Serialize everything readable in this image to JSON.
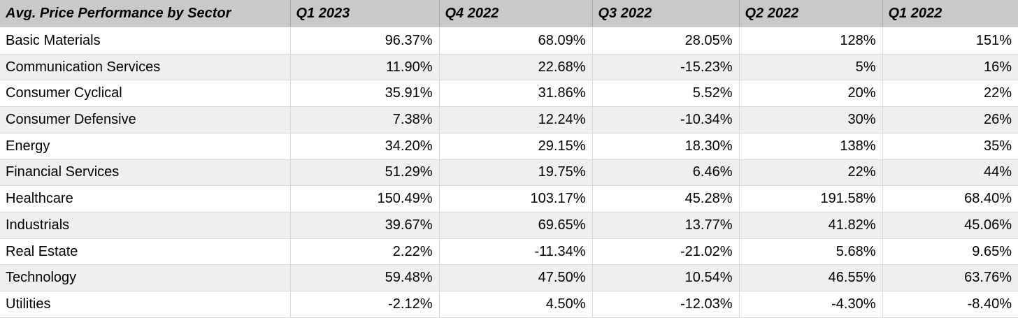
{
  "chart_data": {
    "type": "table",
    "title": "Avg. Price Performance by Sector",
    "columns": [
      "Avg. Price Performance by Sector",
      "Q1 2023",
      "Q4 2022",
      "Q3 2022",
      "Q2 2022",
      "Q1 2022"
    ],
    "rows": [
      {
        "sector": "Basic Materials",
        "values": [
          "96.37%",
          "68.09%",
          "28.05%",
          "128%",
          "151%"
        ]
      },
      {
        "sector": "Communication Services",
        "values": [
          "11.90%",
          "22.68%",
          "-15.23%",
          "5%",
          "16%"
        ]
      },
      {
        "sector": "Consumer Cyclical",
        "values": [
          "35.91%",
          "31.86%",
          "5.52%",
          "20%",
          "22%"
        ]
      },
      {
        "sector": "Consumer Defensive",
        "values": [
          "7.38%",
          "12.24%",
          "-10.34%",
          "30%",
          "26%"
        ]
      },
      {
        "sector": "Energy",
        "values": [
          "34.20%",
          "29.15%",
          "18.30%",
          "138%",
          "35%"
        ]
      },
      {
        "sector": "Financial Services",
        "values": [
          "51.29%",
          "19.75%",
          "6.46%",
          "22%",
          "44%"
        ]
      },
      {
        "sector": "Healthcare",
        "values": [
          "150.49%",
          "103.17%",
          "45.28%",
          "191.58%",
          "68.40%"
        ]
      },
      {
        "sector": "Industrials",
        "values": [
          "39.67%",
          "69.65%",
          "13.77%",
          "41.82%",
          "45.06%"
        ]
      },
      {
        "sector": "Real Estate",
        "values": [
          "2.22%",
          "-11.34%",
          "-21.02%",
          "5.68%",
          "9.65%"
        ]
      },
      {
        "sector": "Technology",
        "values": [
          "59.48%",
          "47.50%",
          "10.54%",
          "46.55%",
          "63.76%"
        ]
      },
      {
        "sector": "Utilities",
        "values": [
          "-2.12%",
          "4.50%",
          "-12.03%",
          "-4.30%",
          "-8.40%"
        ]
      }
    ]
  },
  "colors": {
    "header_bg": "#cac8c8",
    "header_grid": "#a9a7a7",
    "stripe_bg": "#efefef",
    "row_bg": "#ffffff",
    "grid": "#d9d9d9",
    "text": "#000000"
  }
}
